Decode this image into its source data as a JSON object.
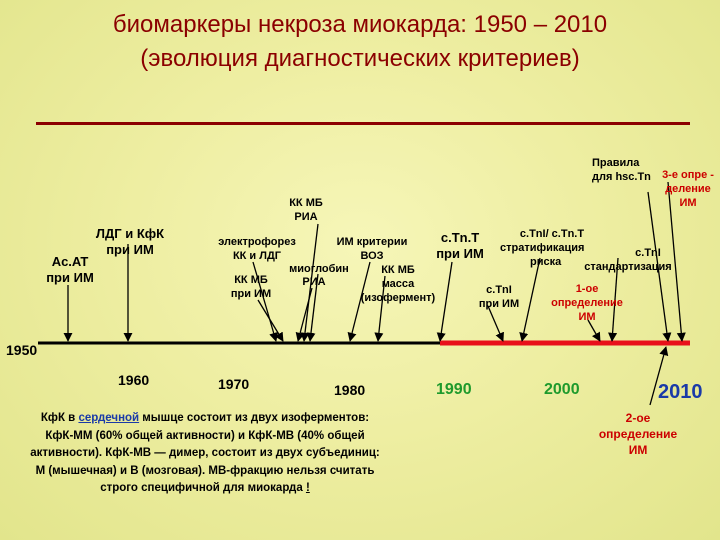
{
  "title": {
    "line1": "биомаркеры некроза миокарда: 1950 – 2010",
    "line2": "(эволюция диагностических критериев)"
  },
  "colors": {
    "title": "#8b0000",
    "timeline": "#000000",
    "highlight": "#e8101a",
    "green_year": "#1e9a2c",
    "blue_year": "#1a3aa8",
    "red_text": "#cc0000"
  },
  "years": {
    "y1950": "1950",
    "y1960": "1960",
    "y1970": "1970",
    "y1980": "1980",
    "y1990": "1990",
    "y2000": "2000",
    "y2010": "2010"
  },
  "labels": {
    "asat_1": "Ac.AT",
    "asat_2": "при ИМ",
    "ldg_1": "ЛДГ и КфК",
    "ldg_2": "при ИМ",
    "electro_1": "электрофорез",
    "electro_2": "КК и ЛДГ",
    "kkmb_ria_1": "КК МБ",
    "kkmb_ria_2": "РИА",
    "kkmb_im_1": "КК МБ",
    "kkmb_im_2": "при ИМ",
    "ria": "РИА",
    "myoglobin": "миоглобин",
    "im_crit_1": "ИМ критерии",
    "im_crit_2": "ВОЗ",
    "kkmb_mass_1": "КК МБ",
    "kkmb_mass_2": "масса",
    "kkmb_mass_3": "(изофермент)",
    "ctnt_1": "c.Tn.T",
    "ctnt_2": "при ИМ",
    "ctni_im_1": "c.TnI",
    "ctni_im_2": "при ИМ",
    "ctni_ctnt": "c.TnI/ c.Tn.T",
    "strat_1": "стратификация",
    "strat_2": "риска",
    "std_1": "c.TnI",
    "std_2": "стандартизация",
    "def1_1": "1-ое",
    "def1_2": "определение",
    "def1_3": "ИМ",
    "rules_1": "Правила",
    "rules_2": "для hsc.Tn",
    "def3_1": "3-е опре -",
    "def3_2": "деление",
    "def3_3": "ИМ",
    "def2_1": "2-ое",
    "def2_2": "определение",
    "def2_3": "ИМ"
  },
  "note": {
    "part1": "КфК в ",
    "link": "сердечной",
    "part2": " мышце состоит из двух изоферментов: КфК-ММ (60% общей активности) и КфК-МВ (40% общей активности). КфК-МВ — димер, состоит из двух субъединиц: М (мышечная) и В (мозговая). МВ-фракцию нельзя считать строго специфичной для миокарда ",
    "tail": "!"
  }
}
